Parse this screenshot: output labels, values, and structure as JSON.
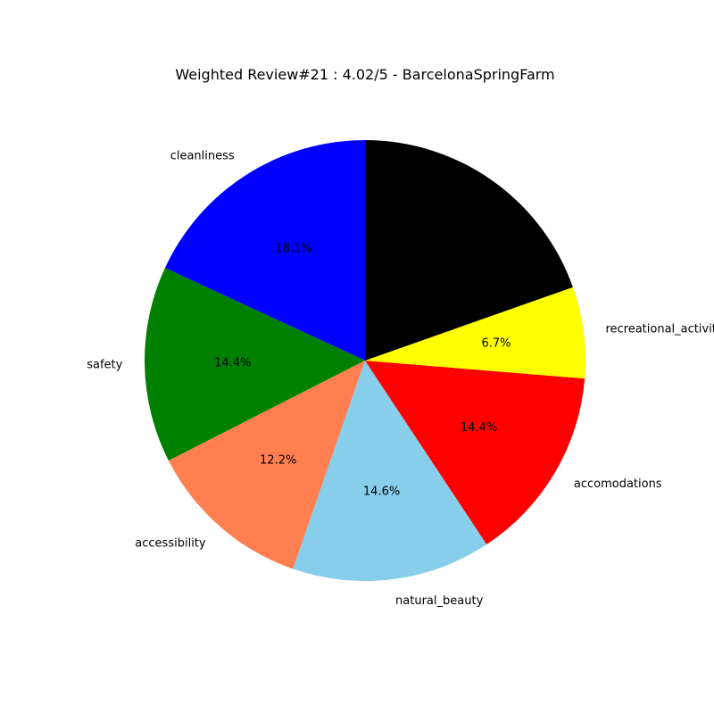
{
  "chart_data": {
    "type": "pie",
    "title": "Weighted Review#21 : 4.02/5 - BarcelonaSpringFarm",
    "start_angle_deg": 90,
    "direction": "counterclockwise",
    "slices": [
      {
        "label": "cleanliness",
        "value": 18.1,
        "pct_label": "18.1%",
        "color": "#0000ff"
      },
      {
        "label": "safety",
        "value": 14.4,
        "pct_label": "14.4%",
        "color": "#008000"
      },
      {
        "label": "accessibility",
        "value": 12.2,
        "pct_label": "12.2%",
        "color": "#ff7f50"
      },
      {
        "label": "natural_beauty",
        "value": 14.6,
        "pct_label": "14.6%",
        "color": "#87ceeb"
      },
      {
        "label": "accomodations",
        "value": 14.4,
        "pct_label": "14.4%",
        "color": "#ff0000"
      },
      {
        "label": "recreational_activities",
        "value": 6.7,
        "pct_label": "6.7%",
        "color": "#ffff00"
      },
      {
        "label": "",
        "value": 19.6,
        "pct_label": "",
        "color": "#000000"
      }
    ]
  }
}
